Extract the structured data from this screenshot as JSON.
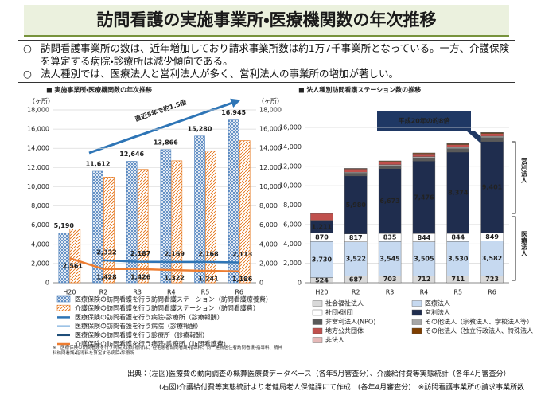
{
  "header": {
    "title": "訪問看護の実施事業所・医療機関数の年次推移"
  },
  "bullets": [
    "訪問看護事業所の数は、近年増加しており請求事業所数は約1万7千事業所となっている。一方、介護保険を算定する病院・診療所は減少傾向である。",
    "法人種別では、医療法人と営利法人が多く、営利法人の事業所の増加が著しい。"
  ],
  "chart_data": [
    {
      "type": "bar_line",
      "title": "■ 実施事業所・医療機関数の年次推移",
      "y_label": "（ヶ所）",
      "y2_label": "（ヶ所）",
      "annotation": "直近5年で約1.5倍",
      "note": "※　医療保険の訪問看護を行う病院又は診療所は、在宅患者訪問看護・指導料、同一建物居住者訪問看護・指導料、精神科訪問看護・指導料を算定する病院・診療所",
      "categories": [
        "H20",
        "R2",
        "R3",
        "R4",
        "R5",
        "R6"
      ],
      "ylim": [
        0,
        18000
      ],
      "yticks": [
        0,
        {
          "value": 2000,
          "label": "2,000"
        },
        {
          "value": 4000,
          "label": "4,000"
        },
        {
          "value": 6000,
          "label": "6,000"
        },
        {
          "value": 8000,
          "label": "8,000"
        },
        {
          "value": 10000,
          "label": "10,000"
        },
        {
          "value": 12000,
          "label": "12,000"
        },
        {
          "value": 14000,
          "label": "14,000"
        },
        {
          "value": 16000,
          "label": "16,000"
        },
        {
          "value": 18000,
          "label": "18,000"
        }
      ],
      "y2lim": [
        0,
        18000
      ],
      "y2ticks": [
        0,
        {
          "value": 2000,
          "label": "2,000"
        },
        {
          "value": 4000,
          "label": "4,000"
        },
        {
          "value": 6000,
          "label": "6,000"
        },
        {
          "value": 8000,
          "label": "8,000"
        },
        {
          "value": 10000,
          "label": "10,000"
        },
        {
          "value": 12000,
          "label": "12,000"
        },
        {
          "value": 14000,
          "label": "14,000"
        },
        {
          "value": 16000,
          "label": "16,000"
        },
        {
          "value": 18000,
          "label": "18,000"
        }
      ],
      "grid": true,
      "series": [
        {
          "name": "医療保険の訪問看護を行う訪問看護ステーション（訪問看護療養費）",
          "kind": "bar",
          "pattern": "crosshatch",
          "color": "#4a7ebb",
          "values": [
            5190,
            11612,
            12646,
            13866,
            15280,
            16945
          ],
          "value_labels": [
            "5,190",
            "11,612",
            "12,646",
            "13,866",
            "15,280",
            "16,945"
          ]
        },
        {
          "name": "介護保険の訪問看護を行う訪問看護ステーション（訪問看護費）",
          "kind": "bar",
          "pattern": "diagonal",
          "color": "#e46c0a",
          "values": [
            5600,
            11000,
            11800,
            12700,
            13700,
            14800
          ]
        },
        {
          "name": "医療保険の訪問看護を行う病院・診療所（診療報酬）",
          "kind": "line",
          "color": "#2e75b6",
          "label_position": "above",
          "values": [
            null,
            2332,
            2187,
            2169,
            2168,
            2113
          ],
          "value_labels": [
            null,
            "2,332",
            "2,187",
            "2,169",
            "2,168",
            "2,113"
          ]
        },
        {
          "name": "医療保険の訪問看護を行う病院（診療報酬）",
          "kind": "line",
          "color": "#9dc3e6",
          "values": [
            null,
            null,
            null,
            null,
            null,
            null
          ]
        },
        {
          "name": "医療保険の訪問看護を行う診療所（診療報酬）",
          "kind": "line",
          "color": "#1f4e79",
          "values": [
            null,
            null,
            null,
            null,
            null,
            null
          ]
        },
        {
          "name": "介護保険の訪問看護を行う病院・診療所（訪問看護費）",
          "kind": "line",
          "color": "#ed7d31",
          "label_position": "below",
          "values": [
            2561,
            1428,
            1426,
            1322,
            1241,
            1186
          ],
          "value_labels": [
            "2,561",
            "1,428",
            "1,426",
            "1,322",
            "1,241",
            "1,186"
          ]
        }
      ]
    },
    {
      "type": "stacked_bar",
      "title": "■ 法人種別訪問看護ステーション数の推移",
      "annotation": "平成20年の約8倍",
      "brackets": [
        "営利法人",
        "医療法人"
      ],
      "categories": [
        "H20",
        "R2",
        "R3",
        "R4",
        "R5",
        "R6"
      ],
      "ylim": [
        0,
        16000
      ],
      "yticks": [
        0,
        {
          "value": 2000,
          "label": "2,000"
        },
        {
          "value": 4000,
          "label": "4,000"
        },
        {
          "value": 6000,
          "label": "6,000"
        },
        {
          "value": 8000,
          "label": "8,000"
        },
        {
          "value": 10000,
          "label": "10,000"
        },
        {
          "value": 12000,
          "label": "12,000"
        },
        {
          "value": 14000,
          "label": "14,000"
        },
        {
          "value": 16000,
          "label": "16,000"
        }
      ],
      "grid": true,
      "series": [
        {
          "name": "社会福祉法人",
          "color": "#d9d9d9",
          "values": [
            524,
            687,
            703,
            712,
            711,
            723
          ],
          "value_labels": [
            "524",
            "687",
            "703",
            "712",
            "711",
            "723"
          ]
        },
        {
          "name": "医療法人",
          "color": "#c6d9f0",
          "values": [
            3730,
            3522,
            3545,
            3505,
            3530,
            3582
          ],
          "value_labels": [
            "3,730",
            "3,522",
            "3,545",
            "3,505",
            "3,530",
            "3,582"
          ]
        },
        {
          "name": "社団・財団",
          "color": "#ffffff",
          "values": [
            870,
            817,
            835,
            844,
            844,
            849
          ],
          "value_labels": [
            "870",
            "817",
            "835",
            "844",
            "844",
            "849"
          ]
        },
        {
          "name": "営利法人",
          "color": "#1f2d4e",
          "values": [
            1211,
            5980,
            6673,
            7476,
            8374,
            9401
          ],
          "value_labels": [
            "1,211",
            "5,980",
            "6,673",
            "7,476",
            "8,374",
            "9,401"
          ]
        },
        {
          "name": "非営利法人(NPO)",
          "color": "#595959",
          "values": [
            60,
            280,
            300,
            330,
            360,
            400
          ]
        },
        {
          "name": "その他法人（宗教法人、学校法人等）",
          "color": "#a6a6a6",
          "values": [
            40,
            100,
            110,
            120,
            130,
            140
          ]
        },
        {
          "name": "地方公共団体",
          "color": "#c0504d",
          "values": [
            700,
            320,
            300,
            290,
            280,
            270
          ]
        },
        {
          "name": "その他法人（独立行政法人、特殊法人等）",
          "color": "#7f3f00",
          "values": [
            40,
            60,
            70,
            80,
            90,
            100
          ]
        },
        {
          "name": "非法人",
          "color": "#e6b9b8",
          "values": [
            20,
            20,
            20,
            20,
            20,
            20
          ]
        }
      ]
    }
  ],
  "source": [
    "出典：(左図)医療費の動向調査の概算医療費データベース（各年5月審査分）、介護給付費等実態統計（各年4月審査分）",
    "(右図)介護給付費等実態統計より老健局老人保健課にて作成　(各年4月審査分)　※訪問看護事業所の請求事業所数"
  ]
}
